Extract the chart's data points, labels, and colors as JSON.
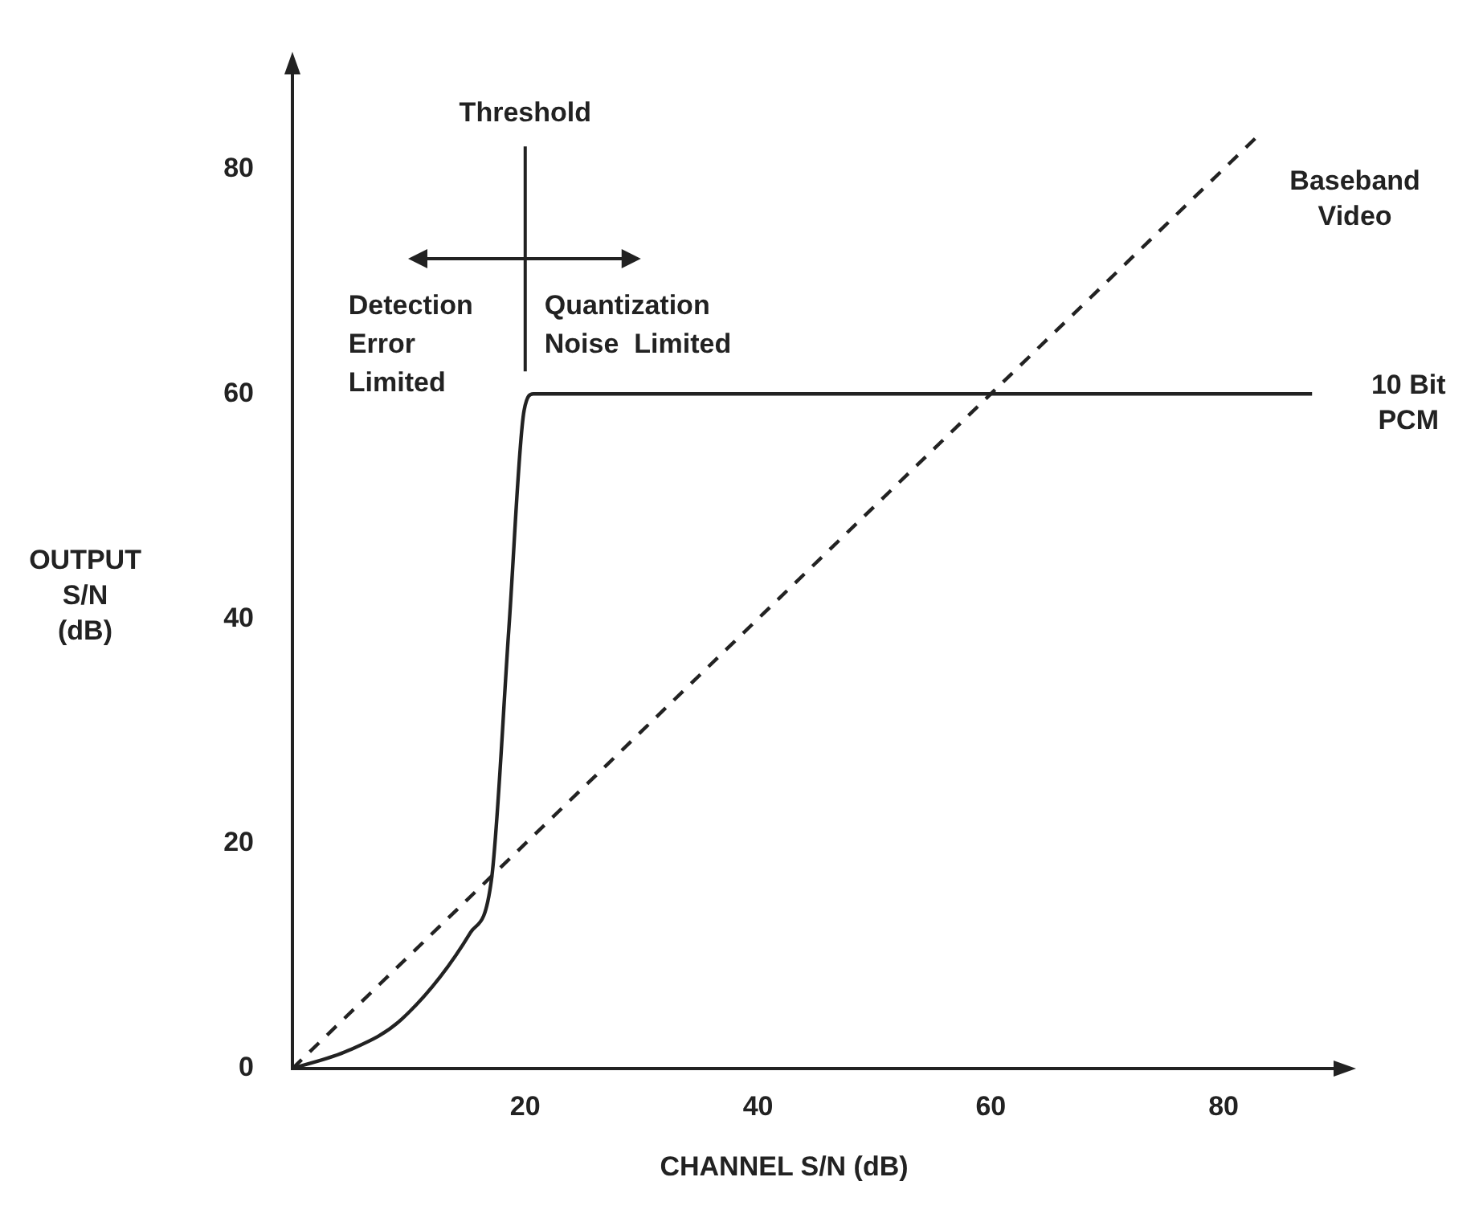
{
  "chart_data": {
    "type": "line",
    "xlabel": "CHANNEL S/N (dB)",
    "ylabel": "OUTPUT S/N (dB)",
    "xlim": [
      0,
      90
    ],
    "ylim": [
      0,
      89
    ],
    "xticks": [
      20,
      40,
      60,
      80
    ],
    "yticks": [
      0,
      20,
      40,
      60,
      80
    ],
    "grid": false,
    "legend": false,
    "marker": "none",
    "series": [
      {
        "name": "10 Bit PCM",
        "color": "#222222",
        "line_style": "solid",
        "x": [
          0,
          4.8,
          9.4,
          15.3,
          17.1,
          18.6,
          19.9,
          20.7,
          87.6
        ],
        "values": [
          0,
          1.6,
          4.4,
          12.1,
          16.8,
          39.2,
          58.5,
          60,
          60
        ]
      },
      {
        "name": "Baseband Video",
        "color": "#222222",
        "line_style": "dashed",
        "x": [
          0,
          83
        ],
        "values": [
          0,
          83
        ]
      }
    ],
    "ref_lines": [
      {
        "axis": "x",
        "value": 20,
        "label": "Threshold",
        "color": "#222222"
      }
    ],
    "annotations": [
      "Detection Error Limited",
      "Quantization Noise Limited"
    ]
  }
}
